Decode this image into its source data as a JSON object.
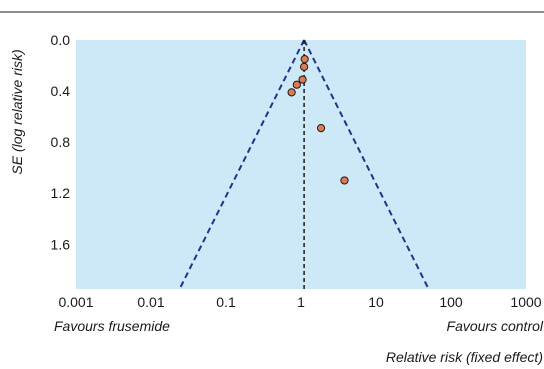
{
  "chart_data": {
    "type": "scatter",
    "ylabel": "SE (log relative risk)",
    "xlabel": "Relative risk (fixed effect)",
    "x_scale": "log",
    "xlim": [
      0.001,
      1000
    ],
    "ylim": [
      0,
      1.95
    ],
    "y_inverted": true,
    "x_ticks": [
      0.001,
      0.01,
      0.1,
      1,
      10,
      100,
      1000
    ],
    "x_tick_labels": [
      "0.001",
      "0.01",
      "0.1",
      "1",
      "10",
      "100",
      "1000"
    ],
    "y_ticks": [
      0,
      0.4,
      0.8,
      1.2,
      1.6
    ],
    "y_tick_labels": [
      "0.0",
      "0.4",
      "0.8",
      "1.2",
      "1.6"
    ],
    "left_annotation": "Favours frusemide",
    "right_annotation": "Favours control",
    "pooled_estimate": 1.1,
    "points": [
      {
        "x": 1.12,
        "y": 0.15
      },
      {
        "x": 1.1,
        "y": 0.21
      },
      {
        "x": 1.05,
        "y": 0.31
      },
      {
        "x": 0.88,
        "y": 0.35
      },
      {
        "x": 0.75,
        "y": 0.41
      },
      {
        "x": 1.85,
        "y": 0.69
      },
      {
        "x": 3.8,
        "y": 1.1
      }
    ],
    "colors": {
      "plot_background": "#cde9f8",
      "point_fill": "#e07a52",
      "point_stroke": "#1a1a1a",
      "funnel_line": "#27318b",
      "reference_line": "#1a1a1a"
    }
  }
}
